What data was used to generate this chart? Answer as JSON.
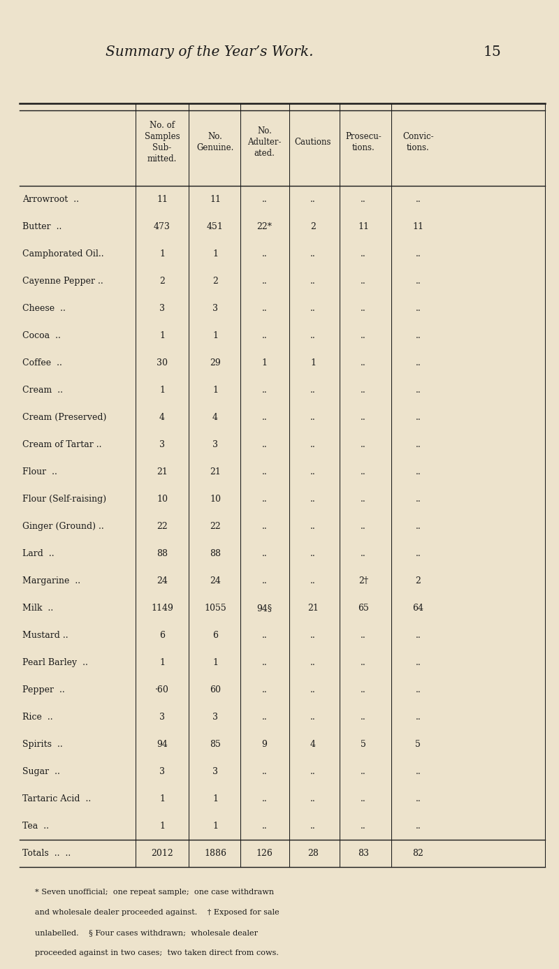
{
  "title": "Summary of the Year’s Work.",
  "page_number": "15",
  "background_color": "#ede3cc",
  "text_color": "#1a1a1a",
  "columns": [
    "No. of\nSamples\nSub-\nmitted.",
    "No.\nGenuine.",
    "No.\nAdulter-\nated.",
    "Cautions",
    "Prosecu-\ntions.",
    "Convic-\ntions."
  ],
  "rows": [
    {
      "item": "Arrowroot",
      "dots": "..",
      "samples": "11",
      "genuine": "11",
      "adulterated": "..",
      "cautions": "..",
      "prosecutions": "..",
      "convictions": ".."
    },
    {
      "item": "Butter",
      "dots": "..",
      "samples": "473",
      "genuine": "451",
      "adulterated": "22*",
      "cautions": "2",
      "prosecutions": "11",
      "convictions": "11"
    },
    {
      "item": "Camphorated Oil..",
      "dots": "",
      "samples": "1",
      "genuine": "1",
      "adulterated": "..",
      "cautions": "..",
      "prosecutions": "..",
      "convictions": ".."
    },
    {
      "item": "Cayenne Pepper ..",
      "dots": "",
      "samples": "2",
      "genuine": "2",
      "adulterated": "..",
      "cautions": "..",
      "prosecutions": "..",
      "convictions": ".."
    },
    {
      "item": "Cheese",
      "dots": "..",
      "samples": "3",
      "genuine": "3",
      "adulterated": "..",
      "cautions": "..",
      "prosecutions": "..",
      "convictions": ".."
    },
    {
      "item": "Cocoa",
      "dots": "..",
      "samples": "1",
      "genuine": "1",
      "adulterated": "..",
      "cautions": "..",
      "prosecutions": "..",
      "convictions": ".."
    },
    {
      "item": "Coffee",
      "dots": "..",
      "samples": "30",
      "genuine": "29",
      "adulterated": "1",
      "cautions": "1",
      "prosecutions": "..",
      "convictions": ".."
    },
    {
      "item": "Cream",
      "dots": "..",
      "samples": "1",
      "genuine": "1",
      "adulterated": "..",
      "cautions": "..",
      "prosecutions": "..",
      "convictions": ".."
    },
    {
      "item": "Cream (Preserved)",
      "dots": "",
      "samples": "4",
      "genuine": "4",
      "adulterated": "..",
      "cautions": "..",
      "prosecutions": "..",
      "convictions": ".."
    },
    {
      "item": "Cream of Tartar ..",
      "dots": "",
      "samples": "3",
      "genuine": "3",
      "adulterated": "..",
      "cautions": "..",
      "prosecutions": "..",
      "convictions": ".."
    },
    {
      "item": "Flour",
      "dots": "..",
      "samples": "21",
      "genuine": "21",
      "adulterated": "..",
      "cautions": "..",
      "prosecutions": "..",
      "convictions": ".."
    },
    {
      "item": "Flour (Self-raising)",
      "dots": "",
      "samples": "10",
      "genuine": "10",
      "adulterated": "..",
      "cautions": "..",
      "prosecutions": "..",
      "convictions": ".."
    },
    {
      "item": "Ginger (Ground) ..",
      "dots": "",
      "samples": "22",
      "genuine": "22",
      "adulterated": "..",
      "cautions": "..",
      "prosecutions": "..",
      "convictions": ".."
    },
    {
      "item": "Lard",
      "dots": "..",
      "samples": "88",
      "genuine": "88",
      "adulterated": "..",
      "cautions": "..",
      "prosecutions": "..",
      "convictions": ".."
    },
    {
      "item": "Margarine",
      "dots": "..",
      "samples": "24",
      "genuine": "24",
      "adulterated": "..",
      "cautions": "..",
      "prosecutions": "2†",
      "convictions": "2"
    },
    {
      "item": "Milk",
      "dots": "..",
      "samples": "1149",
      "genuine": "1055",
      "adulterated": "94§",
      "cautions": "21",
      "prosecutions": "65",
      "convictions": "64"
    },
    {
      "item": "Mustard ..",
      "dots": "..",
      "samples": "6",
      "genuine": "6",
      "adulterated": "..",
      "cautions": "..",
      "prosecutions": "..",
      "convictions": ".."
    },
    {
      "item": "Pearl Barley",
      "dots": "..",
      "samples": "1",
      "genuine": "1",
      "adulterated": "..",
      "cautions": "..",
      "prosecutions": "..",
      "convictions": ".."
    },
    {
      "item": "Pepper",
      "dots": "..",
      "samples": "·60",
      "genuine": "60",
      "adulterated": "..",
      "cautions": "..",
      "prosecutions": "..",
      "convictions": ".."
    },
    {
      "item": "Rice",
      "dots": "..",
      "samples": "3",
      "genuine": "3",
      "adulterated": "..",
      "cautions": "..",
      "prosecutions": "..",
      "convictions": ".."
    },
    {
      "item": "Spirits",
      "dots": "..",
      "samples": "94",
      "genuine": "85",
      "adulterated": "9",
      "cautions": "4",
      "prosecutions": "5",
      "convictions": "5"
    },
    {
      "item": "Sugar",
      "dots": "..",
      "samples": "3",
      "genuine": "3",
      "adulterated": "..",
      "cautions": "..",
      "prosecutions": "..",
      "convictions": ".."
    },
    {
      "item": "Tartaric Acid",
      "dots": "..",
      "samples": "1",
      "genuine": "1",
      "adulterated": "..",
      "cautions": "..",
      "prosecutions": "..",
      "convictions": ".."
    },
    {
      "item": "Tea",
      "dots": "..",
      "samples": "1",
      "genuine": "1",
      "adulterated": "..",
      "cautions": "..",
      "prosecutions": "..",
      "convictions": ".."
    }
  ],
  "totals": {
    "samples": "2012",
    "genuine": "1886",
    "adulterated": "126",
    "cautions": "28",
    "prosecutions": "83",
    "convictions": "82"
  },
  "footnote_line1": "* Seven unofficial;  one repeat sample;  one case withdrawn",
  "footnote_line2": "and wholesale dealer proceeded against.    † Exposed for sale",
  "footnote_line3": "unlabelled.    § Four cases withdrawn;  wholesale dealer",
  "footnote_line4": "proceeded against in two cases;  two taken direct from cows."
}
